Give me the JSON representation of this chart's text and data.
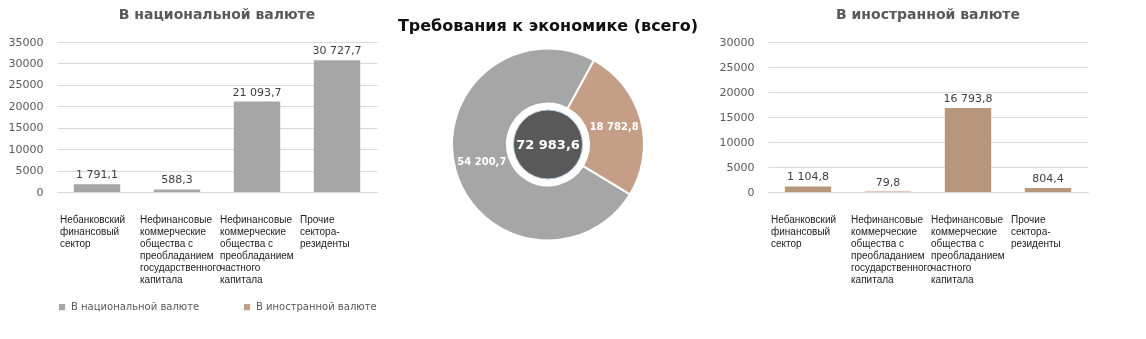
{
  "chart_data": [
    {
      "type": "bar",
      "title": "В национальной валюте",
      "categories": [
        "Небанковский финансовый сектор",
        "Нефинансовые коммерческие общества с преобладанием государственного капитала",
        "Нефинансовые коммерческие общества с преобладанием частного капитала",
        "Прочие сектора-резиденты"
      ],
      "values": [
        1791.1,
        588.3,
        21093.7,
        30727.7
      ],
      "value_labels": [
        "1 791,1",
        "588,3",
        "21 093,7",
        "30 727,7"
      ],
      "color": "#a6a6a6",
      "ylim": [
        0,
        35000
      ],
      "yticks": [
        0,
        5000,
        10000,
        15000,
        20000,
        25000,
        30000,
        35000
      ],
      "grid": "y"
    },
    {
      "type": "donut",
      "title": "Требования к экономике (всего)",
      "categories": [
        "В национальной валюте",
        "В иностранной валюте"
      ],
      "values": [
        54200.7,
        18782.8
      ],
      "value_labels": [
        "54 200,7",
        "18 782,8"
      ],
      "colors": [
        "#a6a6a6",
        "#c49e86"
      ],
      "legend": "bottom",
      "annotations": [
        "72 983,6"
      ]
    },
    {
      "type": "bar",
      "title": "В иностранной валюте",
      "categories": [
        "Небанковский финансовый сектор",
        "Нефинансовые коммерческие общества с преобладанием государственного капитала",
        "Нефинансовые коммерческие общества с преобладанием частного капитала",
        "Прочие сектора-резиденты"
      ],
      "values": [
        1104.8,
        79.8,
        16793.8,
        804.4
      ],
      "value_labels": [
        "1 104,8",
        "79,8",
        "16 793,8",
        "804,4"
      ],
      "color": "#b8967c",
      "ylim": [
        0,
        30000
      ],
      "yticks": [
        0,
        5000,
        10000,
        15000,
        20000,
        25000,
        30000
      ],
      "grid": "y"
    }
  ]
}
